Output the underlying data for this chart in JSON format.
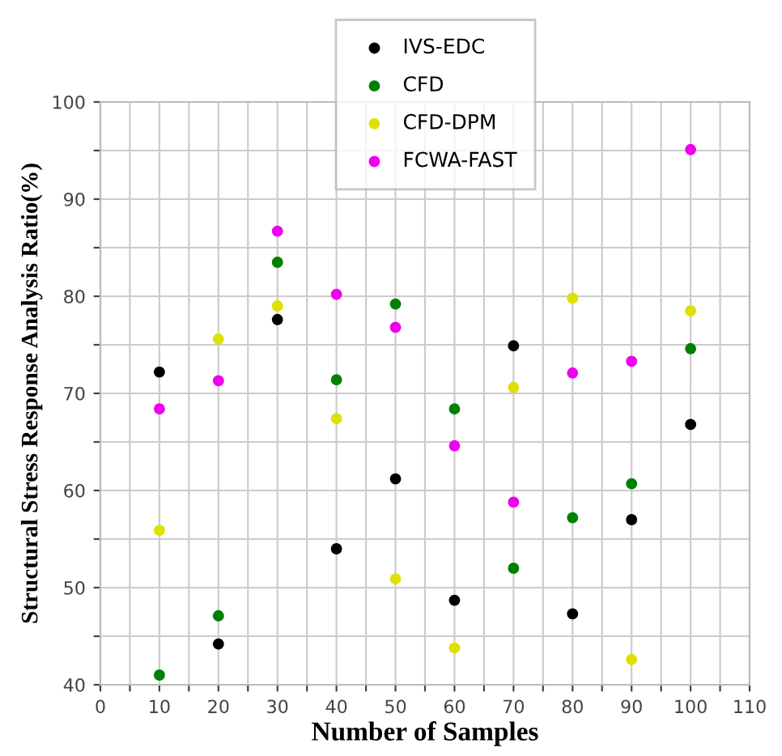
{
  "chart_data": {
    "type": "scatter",
    "xlabel": "Number of Samples",
    "ylabel": "Structural Stress Response Analysis Ratio(%)",
    "x": [
      10,
      20,
      30,
      40,
      50,
      60,
      70,
      80,
      90,
      100
    ],
    "series": [
      {
        "name": "IVS-EDC",
        "color": "#000000",
        "values": [
          72.2,
          44.2,
          77.6,
          54,
          61.2,
          48.7,
          74.9,
          47.3,
          57,
          66.8
        ]
      },
      {
        "name": "CFD",
        "color": "#008000",
        "values": [
          41,
          47.1,
          83.5,
          71.4,
          79.2,
          68.4,
          52,
          57.2,
          60.7,
          74.6
        ]
      },
      {
        "name": "CFD-DPM",
        "color": "#e0e000",
        "values": [
          55.9,
          75.6,
          79,
          67.4,
          50.9,
          43.8,
          70.6,
          79.8,
          42.6,
          78.5
        ]
      },
      {
        "name": "FCWA-FAST",
        "color": "#ee00ee",
        "values": [
          68.4,
          71.3,
          86.7,
          80.2,
          76.8,
          64.6,
          58.8,
          72.1,
          73.3,
          95.1
        ]
      }
    ],
    "xlim": [
      0,
      110
    ],
    "ylim": [
      40,
      100
    ],
    "xticks": [
      0,
      {
        "value": 5,
        "label": null
      },
      10,
      {
        "value": 15,
        "label": null
      },
      20,
      {
        "value": 25,
        "label": null
      },
      30,
      {
        "value": 35,
        "label": null
      },
      40,
      {
        "value": 45,
        "label": null
      },
      50,
      {
        "value": 55,
        "label": null
      },
      60,
      {
        "value": 65,
        "label": null
      },
      70,
      {
        "value": 75,
        "label": null
      },
      80,
      {
        "value": 85,
        "label": null
      },
      90,
      {
        "value": 95,
        "label": null
      },
      100,
      {
        "value": 105,
        "label": null
      },
      110
    ],
    "yticks": [
      40,
      {
        "value": 45,
        "label": null
      },
      50,
      {
        "value": 55,
        "label": null
      },
      60,
      {
        "value": 65,
        "label": null
      },
      70,
      {
        "value": 75,
        "label": null
      },
      80,
      {
        "value": 85,
        "label": null
      },
      90,
      {
        "value": 95,
        "label": null
      },
      100
    ],
    "grid": true,
    "legend": "top",
    "marker": "circle"
  }
}
